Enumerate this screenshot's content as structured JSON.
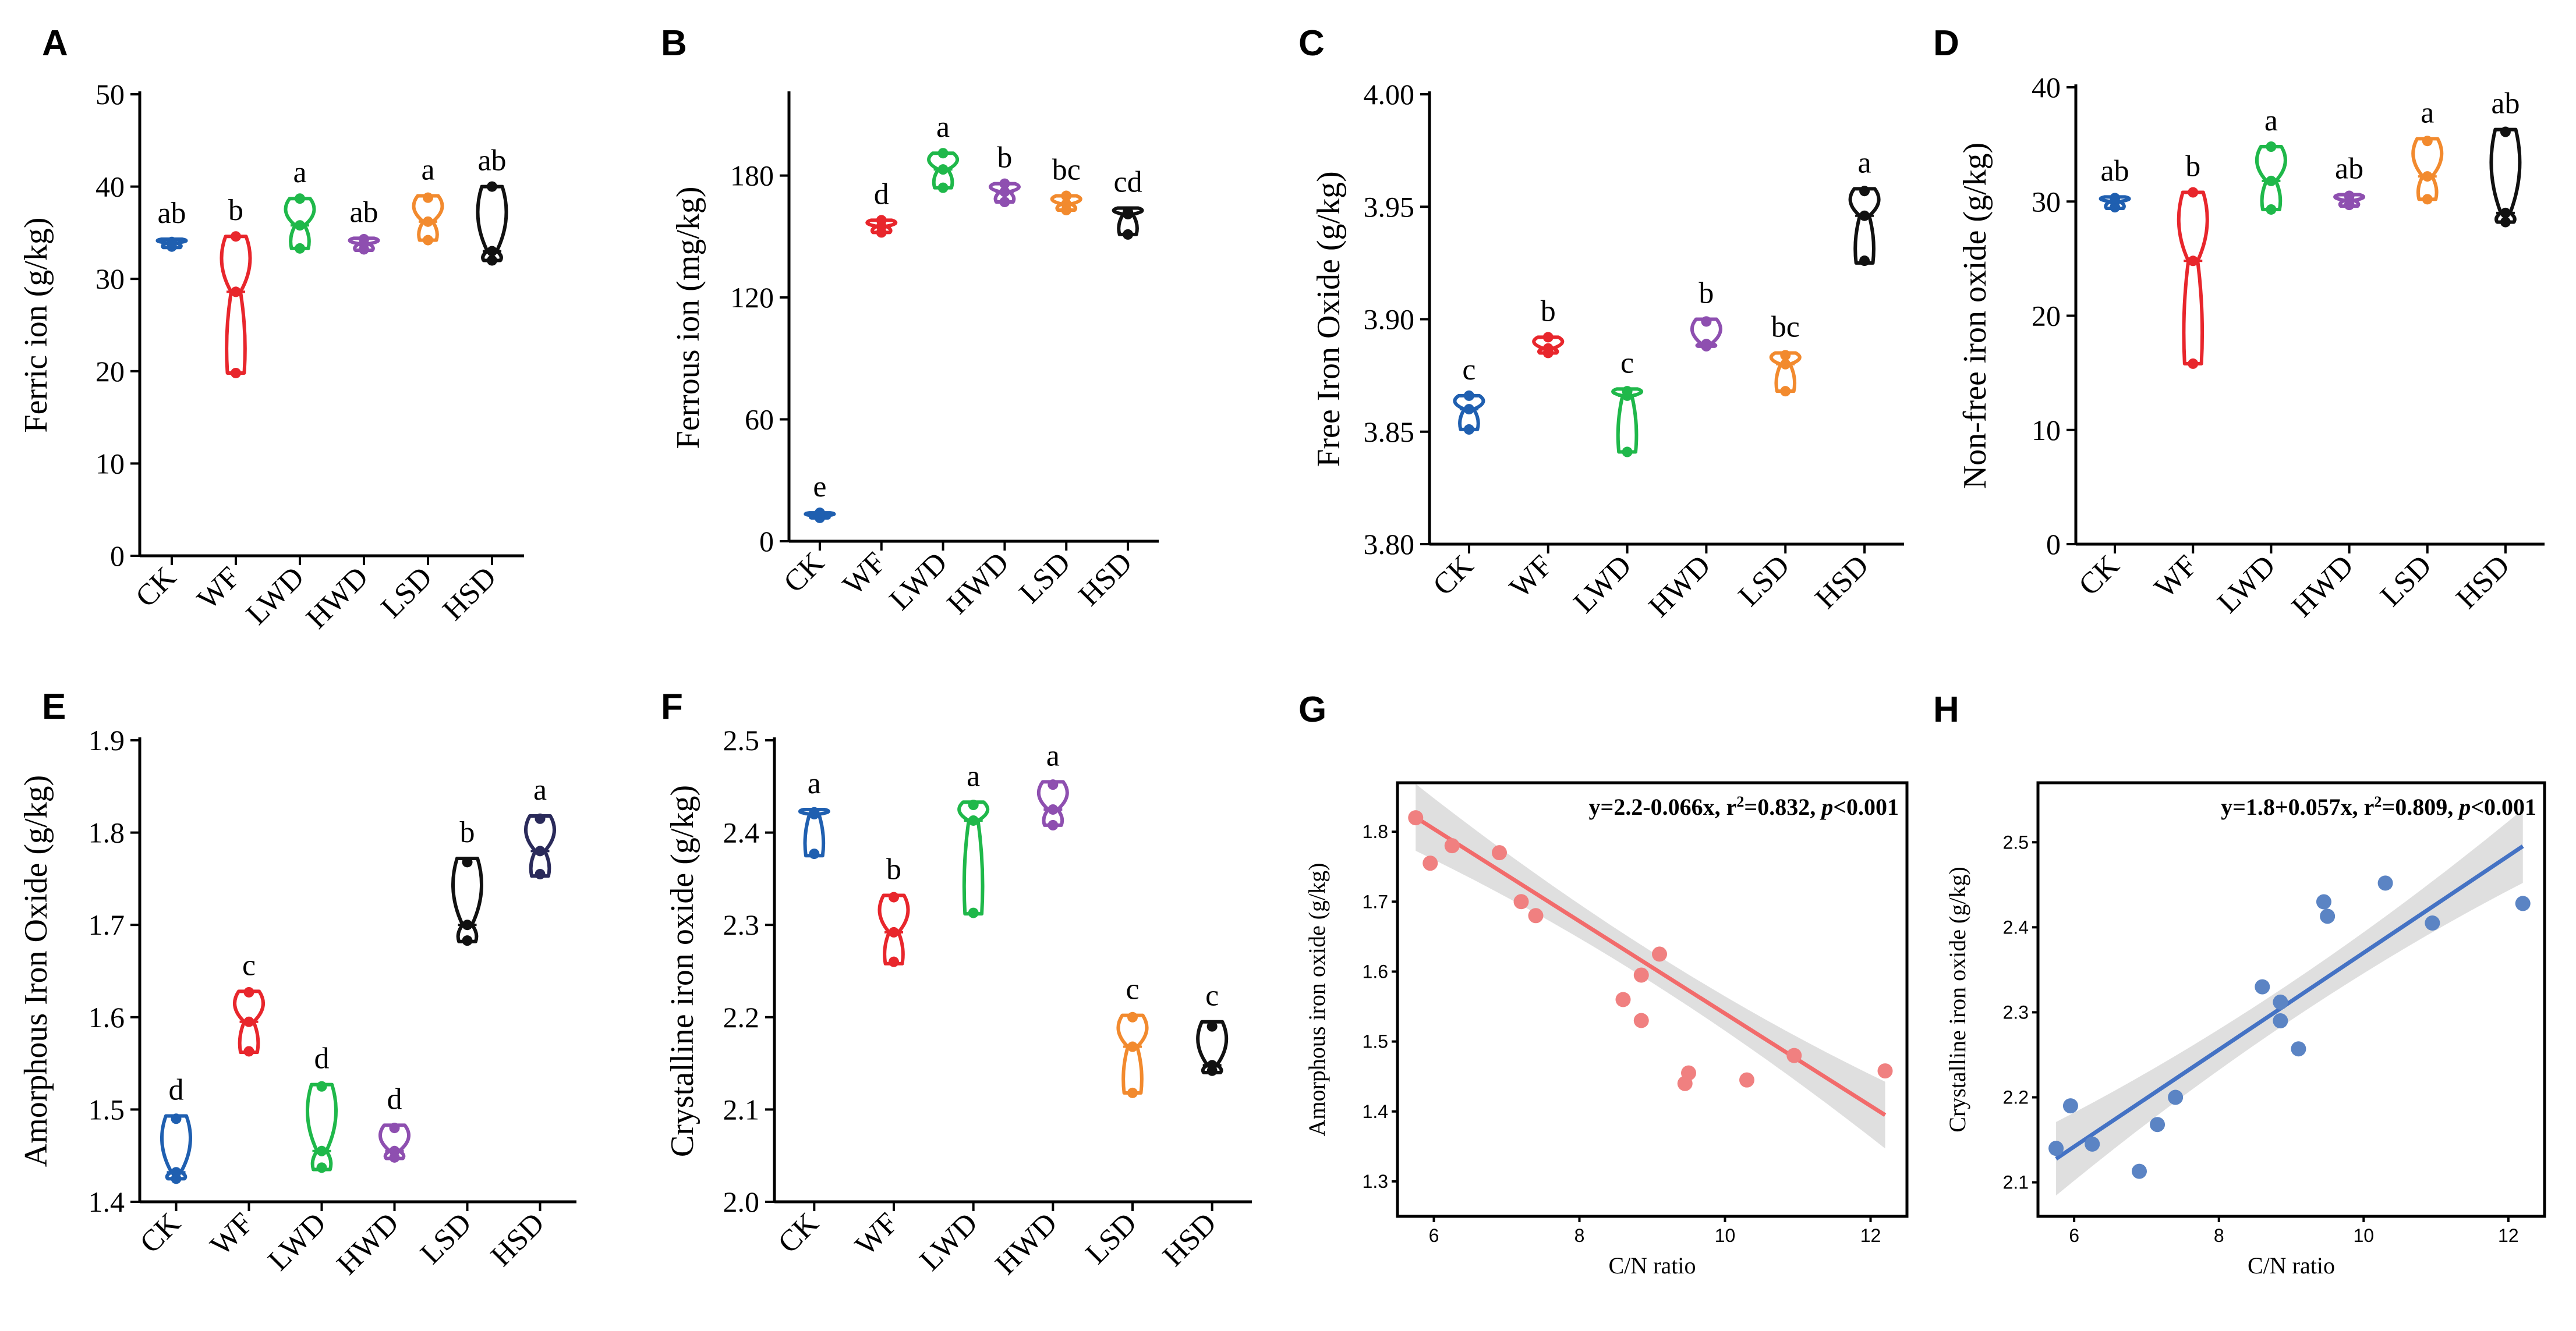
{
  "panels": [
    {
      "id": "A",
      "ylabel": "Ferric ion (g/kg)",
      "yticks": [
        "0",
        "10",
        "20",
        "30",
        "40",
        "50"
      ],
      "ylim": [
        0,
        50
      ],
      "categories": [
        "CK",
        "WF",
        "LWD",
        "HWD",
        "LSD",
        "HSD"
      ],
      "colors": [
        "#1f5fb0",
        "#e8262c",
        "#1fb84a",
        "#8e4fb0",
        "#f28a2e",
        "#111111"
      ],
      "groups": [
        {
          "min": 33.4,
          "max": 34.3,
          "median": 33.9,
          "mean": 33.8,
          "points": [
            33.5,
            34.0,
            33.9
          ],
          "letter": "ab"
        },
        {
          "min": 19.8,
          "max": 34.6,
          "median": 28.6,
          "mean": 28.6,
          "points": [
            19.8,
            28.6,
            34.6
          ],
          "letter": "b"
        },
        {
          "min": 33.3,
          "max": 38.7,
          "median": 35.8,
          "mean": 35.8,
          "points": [
            33.3,
            35.8,
            38.7
          ],
          "letter": "a"
        },
        {
          "min": 33.1,
          "max": 34.4,
          "median": 33.8,
          "mean": 33.8,
          "points": [
            33.2,
            33.8,
            34.3
          ],
          "letter": "ab"
        },
        {
          "min": 34.2,
          "max": 39.0,
          "median": 36.2,
          "mean": 36.3,
          "points": [
            34.2,
            36.2,
            38.8
          ],
          "letter": "a"
        },
        {
          "min": 32.0,
          "max": 40.0,
          "median": 33.0,
          "mean": 34.0,
          "points": [
            32.0,
            33.0,
            40.0
          ],
          "letter": "ab"
        }
      ]
    },
    {
      "id": "B",
      "ylabel": "Ferrous ion (mg/kg)",
      "yticks": [
        "0",
        "60",
        "120",
        "180"
      ],
      "ylim": [
        0,
        220
      ],
      "categories": [
        "CK",
        "WF",
        "LWD",
        "HWD",
        "LSD",
        "HSD"
      ],
      "colors": [
        "#1f5fb0",
        "#e8262c",
        "#1fb84a",
        "#8e4fb0",
        "#f28a2e",
        "#111111"
      ],
      "groups": [
        {
          "min": 11.5,
          "max": 14.0,
          "median": 12.5,
          "mean": 12.5,
          "points": [
            11.5,
            12.5,
            14.0
          ],
          "letter": "e"
        },
        {
          "min": 152,
          "max": 158,
          "median": 155,
          "mean": 155,
          "points": [
            152,
            155,
            158
          ],
          "letter": "d"
        },
        {
          "min": 174,
          "max": 191,
          "median": 183,
          "mean": 183,
          "points": [
            174,
            183,
            191
          ],
          "letter": "a"
        },
        {
          "min": 167,
          "max": 176,
          "median": 172,
          "mean": 172,
          "points": [
            167,
            172,
            176
          ],
          "letter": "b"
        },
        {
          "min": 163,
          "max": 170,
          "median": 166,
          "mean": 166,
          "points": [
            163,
            166,
            170
          ],
          "letter": "bc"
        },
        {
          "min": 151,
          "max": 164,
          "median": 161,
          "mean": 158,
          "points": [
            151,
            161,
            162
          ],
          "letter": "cd"
        }
      ]
    },
    {
      "id": "C",
      "ylabel": "Free Iron Oxide (g/kg)",
      "yticks": [
        "3.80",
        "3.85",
        "3.90",
        "3.95",
        "4.00"
      ],
      "ylim": [
        3.8,
        4.0
      ],
      "categories": [
        "CK",
        "WF",
        "LWD",
        "HWD",
        "LSD",
        "HSD"
      ],
      "colors": [
        "#1f5fb0",
        "#e8262c",
        "#1fb84a",
        "#8e4fb0",
        "#f28a2e",
        "#111111"
      ],
      "groups": [
        {
          "min": 3.851,
          "max": 3.866,
          "median": 3.86,
          "mean": 3.86,
          "points": [
            3.851,
            3.86,
            3.866
          ],
          "letter": "c"
        },
        {
          "min": 3.885,
          "max": 3.892,
          "median": 3.887,
          "mean": 3.888,
          "points": [
            3.885,
            3.887,
            3.892
          ],
          "letter": "b"
        },
        {
          "min": 3.841,
          "max": 3.869,
          "median": 3.866,
          "mean": 3.859,
          "points": [
            3.841,
            3.866,
            3.868
          ],
          "letter": "c"
        },
        {
          "min": 3.888,
          "max": 3.9,
          "median": 3.889,
          "mean": 3.891,
          "points": [
            3.888,
            3.889,
            3.899
          ],
          "letter": "b"
        },
        {
          "min": 3.868,
          "max": 3.885,
          "median": 3.88,
          "mean": 3.878,
          "points": [
            3.868,
            3.88,
            3.884
          ],
          "letter": "bc"
        },
        {
          "min": 3.925,
          "max": 3.958,
          "median": 3.946,
          "mean": 3.943,
          "points": [
            3.926,
            3.946,
            3.957
          ],
          "letter": "a"
        }
      ]
    },
    {
      "id": "D",
      "ylabel": "Non-free iron oxide (g/kg)",
      "yticks": [
        "0",
        "10",
        "20",
        "30",
        "40"
      ],
      "ylim": [
        0,
        40
      ],
      "categories": [
        "CK",
        "WF",
        "LWD",
        "HWD",
        "LSD",
        "HSD"
      ],
      "colors": [
        "#1f5fb0",
        "#e8262c",
        "#1fb84a",
        "#8e4fb0",
        "#f28a2e",
        "#111111"
      ],
      "groups": [
        {
          "min": 29.4,
          "max": 30.4,
          "median": 30.0,
          "mean": 29.9,
          "points": [
            29.5,
            30.0,
            30.3
          ],
          "letter": "ab"
        },
        {
          "min": 15.8,
          "max": 30.8,
          "median": 24.8,
          "mean": 24.5,
          "points": [
            15.8,
            24.8,
            30.8
          ],
          "letter": "b"
        },
        {
          "min": 29.3,
          "max": 34.8,
          "median": 31.8,
          "mean": 32.0,
          "points": [
            29.3,
            31.8,
            34.8
          ],
          "letter": "a"
        },
        {
          "min": 29.6,
          "max": 30.6,
          "median": 30.1,
          "mean": 30.1,
          "points": [
            29.7,
            30.1,
            30.5
          ],
          "letter": "ab"
        },
        {
          "min": 30.2,
          "max": 35.5,
          "median": 32.2,
          "mean": 32.6,
          "points": [
            30.2,
            32.2,
            35.3
          ],
          "letter": "a"
        },
        {
          "min": 28.2,
          "max": 36.3,
          "median": 29.0,
          "mean": 31.0,
          "points": [
            28.2,
            29.0,
            36.1
          ],
          "letter": "ab"
        }
      ]
    },
    {
      "id": "E",
      "ylabel": "Amorphous Iron Oxide (g/kg)",
      "yticks": [
        "1.4",
        "1.5",
        "1.6",
        "1.7",
        "1.8",
        "1.9"
      ],
      "ylim": [
        1.4,
        1.9
      ],
      "categories": [
        "CK",
        "WF",
        "LWD",
        "HWD",
        "LSD",
        "HSD"
      ],
      "colors": [
        "#1f5fb0",
        "#e8262c",
        "#1fb84a",
        "#8e4fb0",
        "#111111",
        "#2a2a5a"
      ],
      "groups": [
        {
          "min": 1.425,
          "max": 1.493,
          "median": 1.432,
          "mean": 1.437,
          "points": [
            1.425,
            1.432,
            1.49
          ],
          "letter": "d"
        },
        {
          "min": 1.562,
          "max": 1.628,
          "median": 1.595,
          "mean": 1.595,
          "points": [
            1.563,
            1.595,
            1.627
          ],
          "letter": "c"
        },
        {
          "min": 1.435,
          "max": 1.527,
          "median": 1.455,
          "mean": 1.47,
          "points": [
            1.437,
            1.455,
            1.525
          ],
          "letter": "d"
        },
        {
          "min": 1.447,
          "max": 1.483,
          "median": 1.455,
          "mean": 1.46,
          "points": [
            1.448,
            1.455,
            1.48
          ],
          "letter": "d"
        },
        {
          "min": 1.682,
          "max": 1.772,
          "median": 1.7,
          "mean": 1.717,
          "points": [
            1.683,
            1.7,
            1.768
          ],
          "letter": "b"
        },
        {
          "min": 1.753,
          "max": 1.818,
          "median": 1.78,
          "mean": 1.783,
          "points": [
            1.755,
            1.78,
            1.815
          ],
          "letter": "a"
        }
      ]
    },
    {
      "id": "F",
      "ylabel": "Crystalline iron oxide (g/kg)",
      "yticks": [
        "2.0",
        "2.1",
        "2.2",
        "2.3",
        "2.4",
        "2.5"
      ],
      "ylim": [
        2.0,
        2.5
      ],
      "categories": [
        "CK",
        "WF",
        "LWD",
        "HWD",
        "LSD",
        "HSD"
      ],
      "colors": [
        "#1f5fb0",
        "#e8262c",
        "#1fb84a",
        "#8e4fb0",
        "#f28a2e",
        "#111111"
      ],
      "groups": [
        {
          "min": 2.375,
          "max": 2.425,
          "median": 2.42,
          "mean": 2.405,
          "points": [
            2.377,
            2.42,
            2.422
          ],
          "letter": "a"
        },
        {
          "min": 2.258,
          "max": 2.332,
          "median": 2.292,
          "mean": 2.293,
          "points": [
            2.26,
            2.292,
            2.33
          ],
          "letter": "b"
        },
        {
          "min": 2.312,
          "max": 2.433,
          "median": 2.413,
          "mean": 2.385,
          "points": [
            2.313,
            2.413,
            2.43
          ],
          "letter": "a"
        },
        {
          "min": 2.408,
          "max": 2.455,
          "median": 2.425,
          "mean": 2.429,
          "points": [
            2.408,
            2.425,
            2.452
          ],
          "letter": "a"
        },
        {
          "min": 2.118,
          "max": 2.202,
          "median": 2.168,
          "mean": 2.165,
          "points": [
            2.118,
            2.168,
            2.2
          ],
          "letter": "c"
        },
        {
          "min": 2.14,
          "max": 2.195,
          "median": 2.148,
          "mean": 2.16,
          "points": [
            2.142,
            2.148,
            2.19
          ],
          "letter": "c"
        }
      ]
    }
  ],
  "scatter_panels": [
    {
      "id": "G",
      "ylabel": "Amorphous iron oxide (g/kg)",
      "xlabel": "C/N ratio",
      "equation_prefix": "y=2.2-0.066x, r",
      "equation_sup": "2",
      "equation_mid": "=0.832, ",
      "equation_p": "p",
      "equation_end": "<0.001",
      "xlim": [
        5.5,
        12.5
      ],
      "ylim": [
        1.25,
        1.87
      ],
      "xticks": [
        "6",
        "8",
        "10",
        "12"
      ],
      "yticks": [
        "1.3",
        "1.4",
        "1.5",
        "1.6",
        "1.7",
        "1.8"
      ],
      "color": "#f08080",
      "line_color": "#f26b6b",
      "intercept": 2.2,
      "slope": -0.066,
      "points": [
        [
          5.75,
          1.82
        ],
        [
          5.95,
          1.755
        ],
        [
          6.25,
          1.78
        ],
        [
          6.9,
          1.77
        ],
        [
          7.2,
          1.7
        ],
        [
          7.4,
          1.68
        ],
        [
          8.6,
          1.56
        ],
        [
          8.85,
          1.595
        ],
        [
          8.85,
          1.53
        ],
        [
          9.1,
          1.625
        ],
        [
          9.45,
          1.44
        ],
        [
          9.5,
          1.455
        ],
        [
          10.3,
          1.445
        ],
        [
          10.95,
          1.48
        ],
        [
          12.2,
          1.458
        ]
      ]
    },
    {
      "id": "H",
      "ylabel": "Crystalline iron oxide (g/kg)",
      "xlabel": "C/N ratio",
      "equation_prefix": "y=1.8+0.057x, r",
      "equation_sup": "2",
      "equation_mid": "=0.809, ",
      "equation_p": "p",
      "equation_end": "<0.001",
      "xlim": [
        5.5,
        12.5
      ],
      "ylim": [
        2.06,
        2.57
      ],
      "xticks": [
        "6",
        "8",
        "10",
        "12"
      ],
      "yticks": [
        "2.1",
        "2.2",
        "2.3",
        "2.4",
        "2.5"
      ],
      "color": "#5b84c4",
      "line_color": "#4472c4",
      "intercept": 1.8,
      "slope": 0.057,
      "points": [
        [
          5.75,
          2.14
        ],
        [
          5.95,
          2.19
        ],
        [
          6.25,
          2.145
        ],
        [
          6.9,
          2.113
        ],
        [
          7.15,
          2.168
        ],
        [
          7.4,
          2.2
        ],
        [
          8.6,
          2.33
        ],
        [
          8.85,
          2.312
        ],
        [
          8.85,
          2.29
        ],
        [
          9.1,
          2.257
        ],
        [
          9.45,
          2.43
        ],
        [
          9.5,
          2.413
        ],
        [
          10.3,
          2.452
        ],
        [
          10.95,
          2.405
        ],
        [
          12.2,
          2.428
        ]
      ]
    }
  ],
  "chart_data": [
    {
      "type": "violin",
      "panel": "A",
      "title": "",
      "ylabel": "Ferric ion (g/kg)",
      "categories": [
        "CK",
        "WF",
        "LWD",
        "HWD",
        "LSD",
        "HSD"
      ],
      "medians": [
        33.9,
        28.6,
        35.8,
        33.8,
        36.2,
        33.0
      ],
      "letters": [
        "ab",
        "b",
        "a",
        "ab",
        "a",
        "ab"
      ],
      "ylim": [
        0,
        50
      ]
    },
    {
      "type": "violin",
      "panel": "B",
      "title": "",
      "ylabel": "Ferrous ion (mg/kg)",
      "categories": [
        "CK",
        "WF",
        "LWD",
        "HWD",
        "LSD",
        "HSD"
      ],
      "medians": [
        12.5,
        155,
        183,
        172,
        166,
        161
      ],
      "letters": [
        "e",
        "d",
        "a",
        "b",
        "bc",
        "cd"
      ],
      "ylim": [
        0,
        220
      ]
    },
    {
      "type": "violin",
      "panel": "C",
      "title": "",
      "ylabel": "Free Iron Oxide (g/kg)",
      "categories": [
        "CK",
        "WF",
        "LWD",
        "HWD",
        "LSD",
        "HSD"
      ],
      "medians": [
        3.86,
        3.887,
        3.866,
        3.889,
        3.88,
        3.946
      ],
      "letters": [
        "c",
        "b",
        "c",
        "b",
        "bc",
        "a"
      ],
      "ylim": [
        3.8,
        4.0
      ]
    },
    {
      "type": "violin",
      "panel": "D",
      "title": "",
      "ylabel": "Non-free iron oxide (g/kg)",
      "categories": [
        "CK",
        "WF",
        "LWD",
        "HWD",
        "LSD",
        "HSD"
      ],
      "medians": [
        30.0,
        24.8,
        31.8,
        30.1,
        32.2,
        29.0
      ],
      "letters": [
        "ab",
        "b",
        "a",
        "ab",
        "a",
        "ab"
      ],
      "ylim": [
        0,
        40
      ]
    },
    {
      "type": "violin",
      "panel": "E",
      "title": "",
      "ylabel": "Amorphous Iron Oxide (g/kg)",
      "categories": [
        "CK",
        "WF",
        "LWD",
        "HWD",
        "LSD",
        "HSD"
      ],
      "medians": [
        1.432,
        1.595,
        1.455,
        1.455,
        1.7,
        1.78
      ],
      "letters": [
        "d",
        "c",
        "d",
        "d",
        "b",
        "a"
      ],
      "ylim": [
        1.4,
        1.9
      ]
    },
    {
      "type": "violin",
      "panel": "F",
      "title": "",
      "ylabel": "Crystalline iron oxide (g/kg)",
      "categories": [
        "CK",
        "WF",
        "LWD",
        "HWD",
        "LSD",
        "HSD"
      ],
      "medians": [
        2.42,
        2.292,
        2.413,
        2.425,
        2.168,
        2.148
      ],
      "letters": [
        "a",
        "b",
        "a",
        "a",
        "c",
        "c"
      ],
      "ylim": [
        2.0,
        2.5
      ]
    },
    {
      "type": "scatter",
      "panel": "G",
      "xlabel": "C/N ratio",
      "ylabel": "Amorphous iron oxide (g/kg)",
      "fit": "y=2.2-0.066x",
      "r2": 0.832,
      "p": "<0.001"
    },
    {
      "type": "scatter",
      "panel": "H",
      "xlabel": "C/N ratio",
      "ylabel": "Crystalline iron oxide (g/kg)",
      "fit": "y=1.8+0.057x",
      "r2": 0.809,
      "p": "<0.001"
    }
  ]
}
